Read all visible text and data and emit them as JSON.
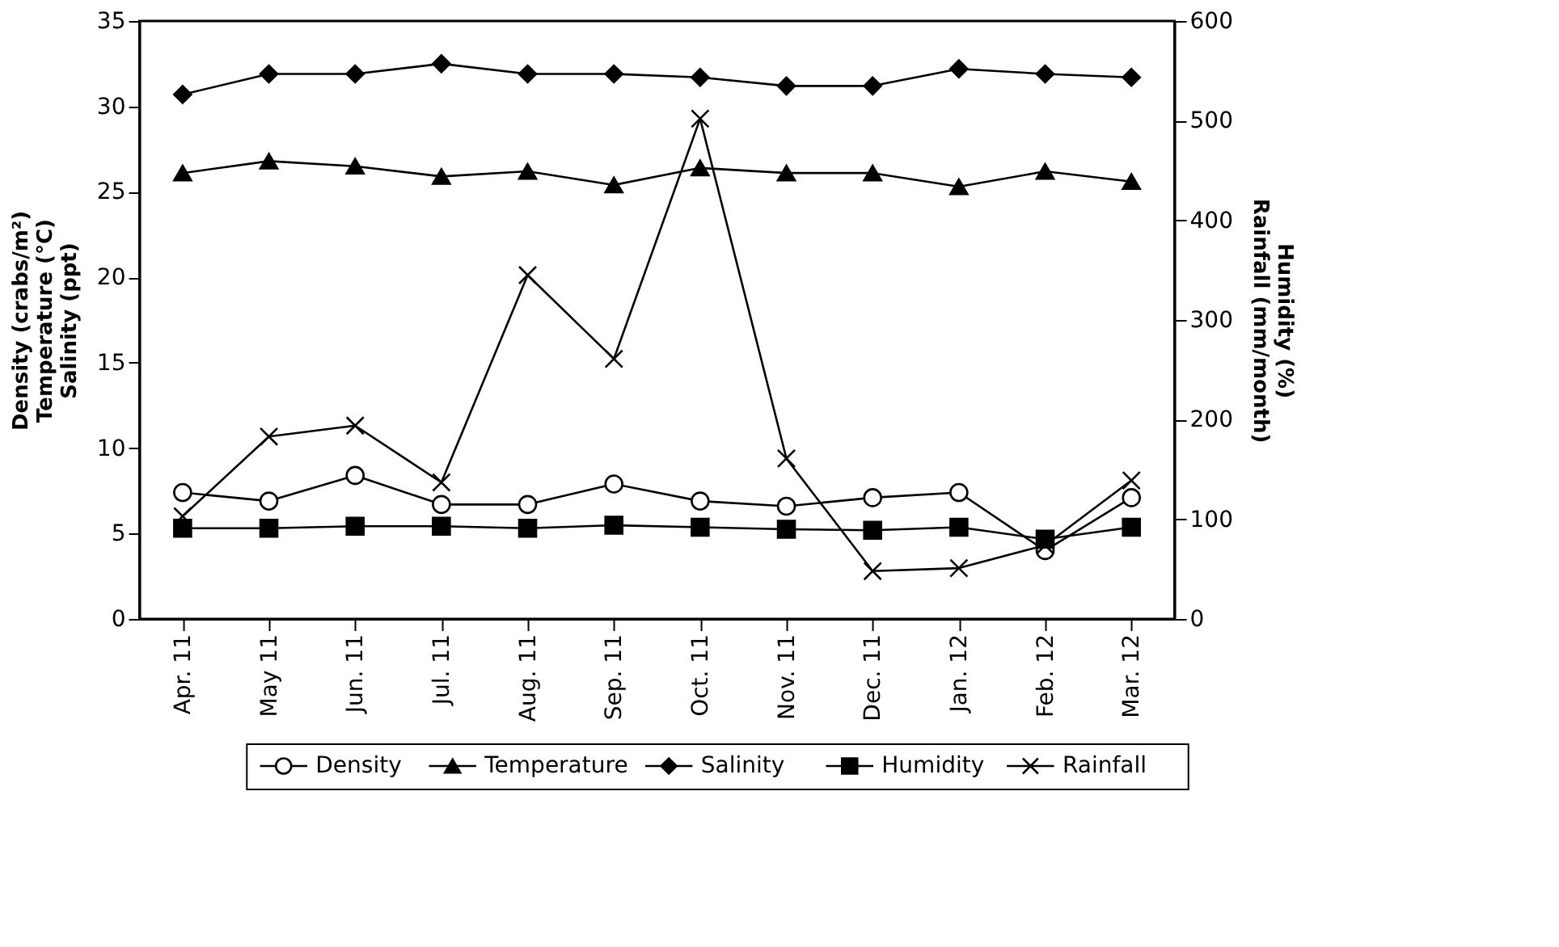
{
  "chart_data": {
    "type": "line",
    "categories": [
      "Apr. 11",
      "May 11",
      "Jun. 11",
      "Jul. 11",
      "Aug. 11",
      "Sep. 11",
      "Oct. 11",
      "Nov. 11",
      "Dec. 11",
      "Jan. 12",
      "Feb. 12",
      "Mar. 12"
    ],
    "ylabel": "Density (crabs/m²)\nTemperature (°C)\nSalinity (ppt)",
    "y2label": "Humidity (%)\nRainfall (mm/month)",
    "ylim": [
      0,
      35
    ],
    "yticks": [
      0,
      5,
      10,
      15,
      20,
      25,
      30,
      35
    ],
    "y2lim": [
      0,
      600
    ],
    "y2ticks": [
      0,
      100,
      200,
      300,
      400,
      500,
      600
    ],
    "legend": "bottom",
    "grid": false,
    "series": [
      {
        "name": "Density",
        "color": "#000000",
        "marker": "circle",
        "values": [
          7.4,
          6.9,
          8.4,
          6.7,
          6.7,
          7.9,
          6.9,
          6.6,
          7.1,
          7.4,
          4.0,
          7.1
        ]
      },
      {
        "name": "Temperature",
        "color": "#000000",
        "marker": "triangle",
        "values": [
          26.1,
          26.8,
          26.5,
          25.9,
          26.2,
          25.4,
          26.4,
          26.1,
          26.1,
          25.3,
          26.2,
          25.6
        ]
      },
      {
        "name": "Salinity",
        "color": "#000000",
        "marker": "diamond",
        "values": [
          30.7,
          31.9,
          31.9,
          32.5,
          31.9,
          31.9,
          31.7,
          31.2,
          31.2,
          32.2,
          31.9,
          31.7
        ]
      },
      {
        "name": "Humidity",
        "color": "#000000",
        "marker": "square",
        "axis": "y2",
        "values": [
          91,
          91,
          93,
          93,
          91,
          94,
          92,
          90,
          89,
          92,
          80,
          92
        ]
      },
      {
        "name": "Rainfall",
        "color": "#000000",
        "marker": "cross",
        "axis": "y2",
        "values": [
          103,
          183,
          194,
          137,
          345,
          261,
          502,
          161,
          48,
          51,
          74,
          139
        ]
      }
    ]
  }
}
